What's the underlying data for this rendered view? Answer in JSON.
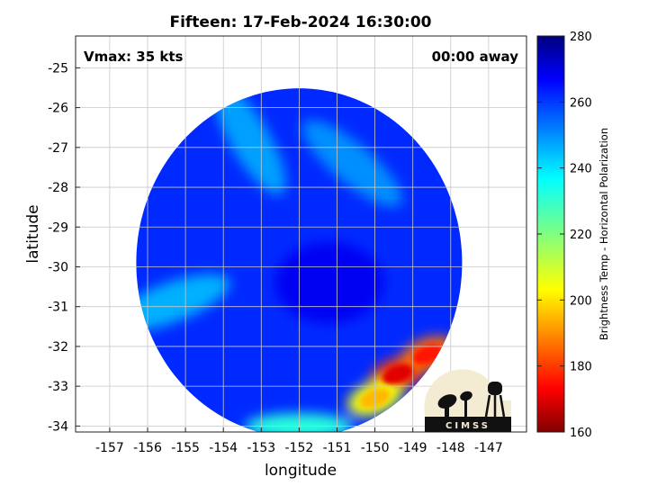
{
  "chart_data": {
    "type": "heatmap",
    "title": "Fifteen: 17-Feb-2024 16:30:00",
    "xlabel": "longitude",
    "ylabel": "latitude",
    "xlim": [
      -157.9,
      -146.0
    ],
    "ylim": [
      -34.15,
      -24.2
    ],
    "xticks": [
      -157,
      -156,
      -155,
      -154,
      -153,
      -152,
      -151,
      -150,
      -149,
      -148,
      -147
    ],
    "xtick_labels": [
      "-157",
      "-156",
      "-155",
      "-154",
      "-153",
      "-152",
      "-151",
      "-150",
      "-149",
      "-148",
      "-147"
    ],
    "yticks": [
      -25,
      -26,
      -27,
      -28,
      -29,
      -30,
      -31,
      -32,
      -33,
      -34
    ],
    "ytick_labels": [
      "-25",
      "-26",
      "-27",
      "-28",
      "-29",
      "-30",
      "-31",
      "-32",
      "-33",
      "-34"
    ],
    "grid": true,
    "annotations": {
      "top_left": "Vmax: 35 kts",
      "top_right": "00:00 away"
    },
    "colorbar": {
      "label": "Brightness Temp - Horizontal Polarization",
      "range": [
        160,
        280
      ],
      "ticks": [
        160,
        180,
        200,
        220,
        240,
        260,
        280
      ],
      "tick_labels": [
        "160",
        "180",
        "200",
        "220",
        "240",
        "260",
        "280"
      ],
      "colormap": "jet"
    },
    "swath": {
      "center": [
        -152.0,
        -29.9
      ],
      "radius_deg": 4.3,
      "east_cutoff_lon": -149.55,
      "background_value": 262,
      "features": [
        {
          "kind": "warm_core",
          "lon": -151.2,
          "lat": -30.4,
          "value": 268
        },
        {
          "kind": "cool_band",
          "lon": -153.3,
          "lat": -26.8,
          "value": 248
        },
        {
          "kind": "cool_band",
          "lon": -155.4,
          "lat": -30.9,
          "value": 246
        },
        {
          "kind": "cool_band",
          "lon": -150.6,
          "lat": -27.4,
          "value": 250
        },
        {
          "kind": "convection",
          "lon": -149.4,
          "lat": -32.7,
          "value": 180
        },
        {
          "kind": "convection",
          "lon": -148.6,
          "lat": -32.2,
          "value": 186
        },
        {
          "kind": "convection",
          "lon": -150.0,
          "lat": -33.3,
          "value": 205
        },
        {
          "kind": "moist_edge",
          "lon": -152.0,
          "lat": -34.0,
          "value": 232
        }
      ]
    }
  },
  "logo": {
    "text": "CIMSS",
    "colors": {
      "bg": "#f4ecd2",
      "ink": "#111111"
    }
  }
}
